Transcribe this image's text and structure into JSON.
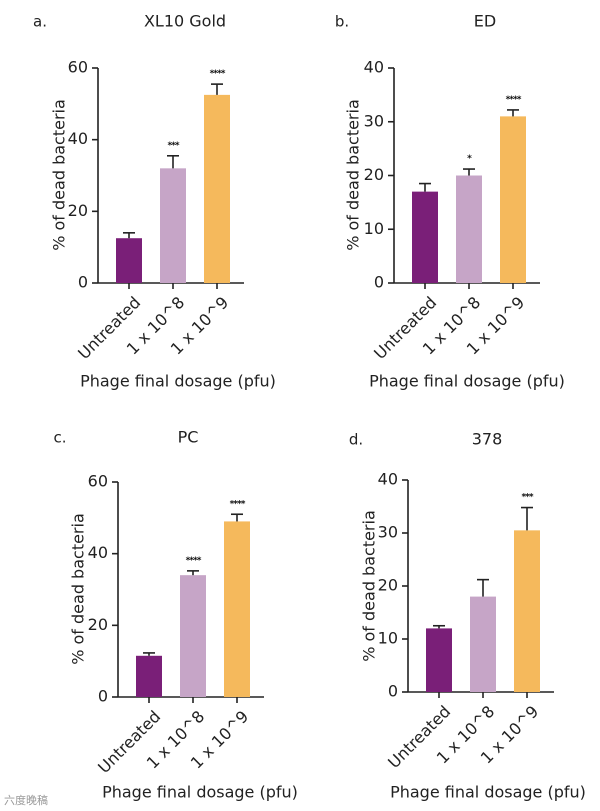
{
  "chart_data": [
    {
      "panel_label": "a.",
      "type": "bar",
      "title": "XL10 Gold",
      "xlabel": "Phage final dosage (pfu)",
      "ylabel": "% of dead bacteria",
      "ylim": [
        0,
        60
      ],
      "yticks": [
        0,
        20,
        40,
        60
      ],
      "categories": [
        "Untreated",
        "1 x 10^8",
        "1 x 10^9"
      ],
      "values": [
        12.5,
        32,
        52.5
      ],
      "errors": [
        1.5,
        3.5,
        3
      ],
      "significance": [
        "",
        "***",
        "****"
      ],
      "colors": [
        "#7a1f78",
        "#c6a5c7",
        "#f5b95c"
      ]
    },
    {
      "panel_label": "b.",
      "type": "bar",
      "title": "ED",
      "xlabel": "Phage final dosage (pfu)",
      "ylabel": "% of dead bacteria",
      "ylim": [
        0,
        40
      ],
      "yticks": [
        0,
        10,
        20,
        30,
        40
      ],
      "categories": [
        "Untreated",
        "1 x 10^8",
        "1 x 10^9"
      ],
      "values": [
        17,
        20,
        31
      ],
      "errors": [
        1.5,
        1.2,
        1.2
      ],
      "significance": [
        "",
        "*",
        "****"
      ],
      "colors": [
        "#7a1f78",
        "#c6a5c7",
        "#f5b95c"
      ]
    },
    {
      "panel_label": "c.",
      "type": "bar",
      "title": "PC",
      "xlabel": "Phage final dosage (pfu)",
      "ylabel": "% of dead bacteria",
      "ylim": [
        0,
        60
      ],
      "yticks": [
        0,
        20,
        40,
        60
      ],
      "categories": [
        "Untreated",
        "1 x 10^8",
        "1 x 10^9"
      ],
      "values": [
        11.5,
        34,
        49
      ],
      "errors": [
        0.8,
        1.2,
        2
      ],
      "significance": [
        "",
        "****",
        "****"
      ],
      "colors": [
        "#7a1f78",
        "#c6a5c7",
        "#f5b95c"
      ]
    },
    {
      "panel_label": "d.",
      "type": "bar",
      "title": "378",
      "xlabel": "Phage final dosage (pfu)",
      "ylabel": "% of dead bacteria",
      "ylim": [
        0,
        40
      ],
      "yticks": [
        0,
        10,
        20,
        30,
        40
      ],
      "categories": [
        "Untreated",
        "1 x 10^8",
        "1 x 10^9"
      ],
      "values": [
        12,
        18,
        30.5
      ],
      "errors": [
        0.5,
        3.2,
        4.3
      ],
      "significance": [
        "",
        "",
        "***"
      ],
      "colors": [
        "#7a1f78",
        "#c6a5c7",
        "#f5b95c"
      ]
    }
  ],
  "watermark": "六度晚稿"
}
